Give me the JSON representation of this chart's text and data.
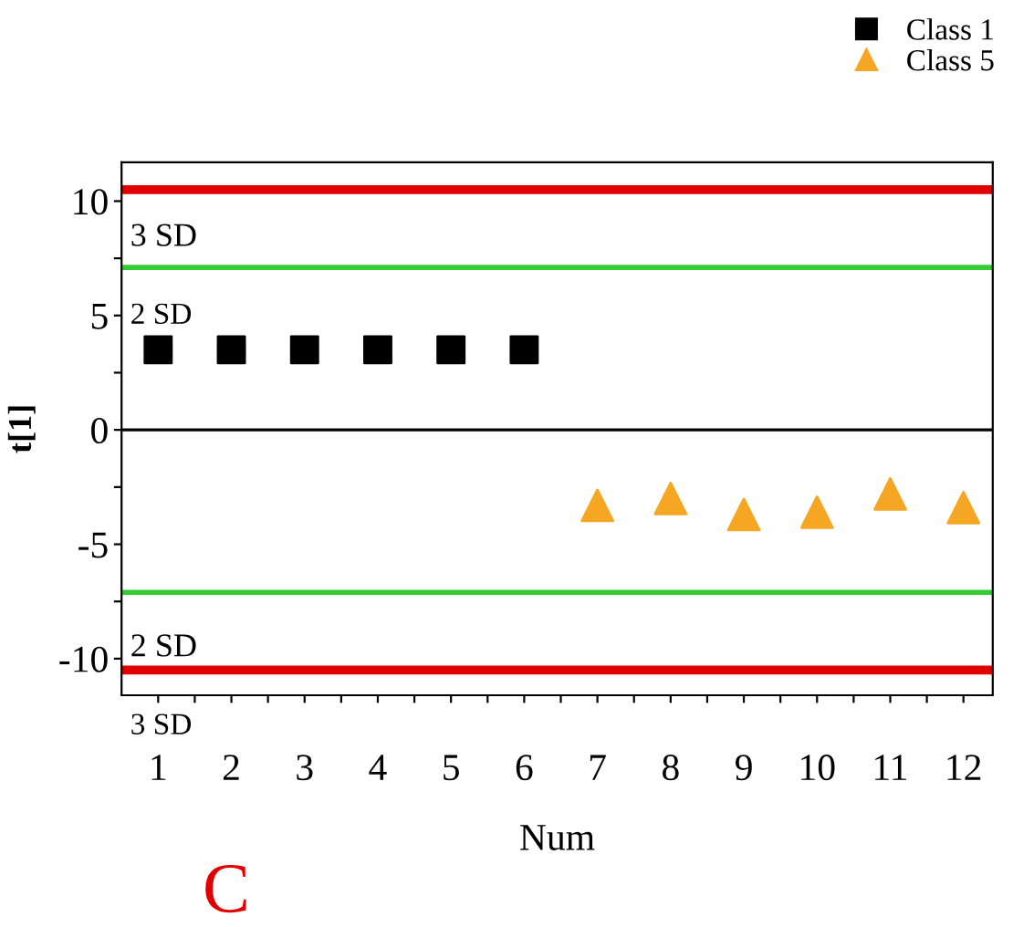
{
  "chart_data": {
    "type": "scatter",
    "xlabel": "Num",
    "ylabel": "t[1]",
    "xlim": [
      0.5,
      12.4
    ],
    "ylim": [
      -11.6,
      11.7
    ],
    "xticks": [
      1,
      {
        "value": 1.5,
        "label": null
      },
      2,
      {
        "value": 2.5,
        "label": null
      },
      3,
      {
        "value": 3.5,
        "label": null
      },
      4,
      {
        "value": 4.5,
        "label": null
      },
      5,
      {
        "value": 5.5,
        "label": null
      },
      6,
      {
        "value": 6.5,
        "label": null
      },
      7,
      {
        "value": 7.5,
        "label": null
      },
      8,
      {
        "value": 8.5,
        "label": null
      },
      9,
      {
        "value": 9.5,
        "label": null
      },
      10,
      {
        "value": 10.5,
        "label": null
      },
      11,
      {
        "value": 11.5,
        "label": null
      },
      12
    ],
    "yticks": [
      -10,
      {
        "value": -7.5,
        "label": null
      },
      -5,
      {
        "value": -2.5,
        "label": null
      },
      0,
      {
        "value": 2.5,
        "label": null
      },
      5,
      {
        "value": 7.5,
        "label": null
      },
      10
    ],
    "series": [
      {
        "name": "Class 1",
        "color": "#000000",
        "marker": "square",
        "x": [
          1,
          2,
          3,
          4,
          5,
          6
        ],
        "values": [
          3.5,
          3.5,
          3.5,
          3.5,
          3.5,
          3.5
        ]
      },
      {
        "name": "Class 5",
        "color": "#f5a623",
        "marker": "triangle",
        "x": [
          7,
          8,
          9,
          10,
          11,
          12
        ],
        "values": [
          -3.3,
          -3.0,
          -3.7,
          -3.6,
          -2.8,
          -3.4
        ]
      }
    ],
    "ref_lines": [
      {
        "axis": "y",
        "value": 10.5,
        "color": "#e00000"
      },
      {
        "axis": "y",
        "value": -10.5,
        "color": "#e00000"
      },
      {
        "axis": "y",
        "value": 7.1,
        "color": "#33cc33"
      },
      {
        "axis": "y",
        "value": -7.1,
        "color": "#33cc33"
      },
      {
        "axis": "y",
        "value": 0,
        "color": "#000000"
      }
    ],
    "annotations": [
      "3 SD",
      "2 SD",
      "2 SD",
      "3 SD",
      "C"
    ],
    "legend": "top right",
    "grid": false
  }
}
